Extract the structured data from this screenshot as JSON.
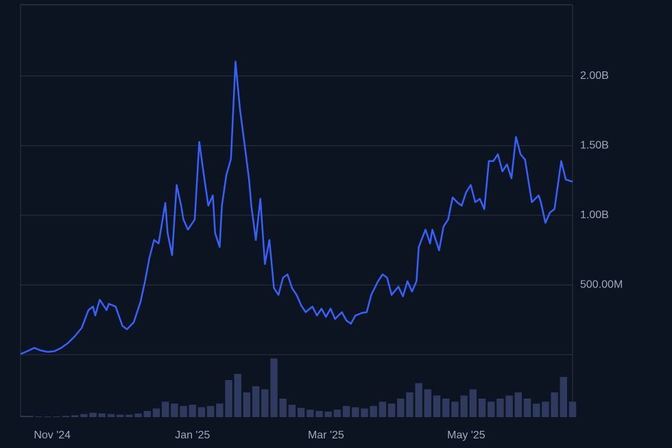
{
  "chart_data": {
    "type": "line",
    "series": [
      {
        "color": "#3861fb",
        "x": [
          0,
          3,
          6,
          9,
          12,
          15,
          18,
          21,
          24,
          27,
          30,
          32,
          33,
          35,
          38,
          39,
          42,
          45,
          47,
          50,
          53,
          55,
          57,
          59,
          61,
          64,
          65,
          67,
          69,
          71,
          72,
          74,
          77,
          79,
          81,
          83,
          85,
          86,
          88,
          89,
          91,
          93,
          95,
          97,
          99,
          101,
          102,
          104,
          106,
          108,
          110,
          112,
          114,
          116,
          118,
          120,
          122,
          124,
          126,
          129,
          131,
          133,
          135,
          137,
          139,
          142,
          144,
          146,
          148,
          151,
          153,
          155,
          158,
          160,
          162,
          164,
          167,
          169,
          171,
          173,
          175,
          176,
          179,
          181,
          182,
          185,
          187,
          189,
          191,
          193,
          195,
          197,
          199,
          201,
          203,
          205,
          207,
          209,
          211,
          213,
          215,
          217,
          219,
          221,
          223,
          226,
          229,
          230,
          232,
          234,
          236,
          239,
          241,
          244
        ],
        "values": [
          5000000,
          25000000,
          49000000,
          30000000,
          20000000,
          25000000,
          49000000,
          84000000,
          133000000,
          192000000,
          320000000,
          345000000,
          281000000,
          394000000,
          320000000,
          365000000,
          345000000,
          207000000,
          182000000,
          232000000,
          379000000,
          527000000,
          700000000,
          823000000,
          798000000,
          1089000000,
          872000000,
          714000000,
          1217000000,
          1069000000,
          970000000,
          897000000,
          970000000,
          1527000000,
          1291000000,
          1069000000,
          1143000000,
          872000000,
          773000000,
          1069000000,
          1291000000,
          1404000000,
          2103000000,
          1759000000,
          1512000000,
          1256000000,
          1069000000,
          823000000,
          1118000000,
          650000000,
          823000000,
          478000000,
          429000000,
          552000000,
          576000000,
          478000000,
          429000000,
          355000000,
          305000000,
          345000000,
          281000000,
          330000000,
          271000000,
          330000000,
          256000000,
          305000000,
          246000000,
          222000000,
          281000000,
          300000000,
          305000000,
          429000000,
          527000000,
          576000000,
          552000000,
          429000000,
          488000000,
          419000000,
          527000000,
          453000000,
          527000000,
          773000000,
          897000000,
          798000000,
          897000000,
          749000000,
          921000000,
          970000000,
          1128000000,
          1094000000,
          1069000000,
          1167000000,
          1217000000,
          1094000000,
          1118000000,
          1044000000,
          1389000000,
          1389000000,
          1438000000,
          1315000000,
          1365000000,
          1266000000,
          1562000000,
          1438000000,
          1399000000,
          1094000000,
          1143000000,
          1094000000,
          946000000,
          1020000000,
          1044000000,
          1389000000,
          1256000000,
          1241000000
        ]
      }
    ],
    "volume": {
      "color": "#2f3a5e",
      "x": [
        0,
        4,
        8,
        12,
        16,
        20,
        24,
        28,
        32,
        36,
        40,
        44,
        48,
        52,
        56,
        60,
        64,
        68,
        72,
        76,
        80,
        84,
        88,
        92,
        96,
        100,
        104,
        108,
        112,
        116,
        120,
        124,
        128,
        132,
        136,
        140,
        144,
        148,
        152,
        156,
        160,
        164,
        168,
        172,
        176,
        180,
        184,
        188,
        192,
        196,
        200,
        204,
        208,
        212,
        216,
        220,
        224,
        228,
        232,
        236,
        240,
        244
      ],
      "values": [
        2,
        2,
        1,
        1,
        1,
        2,
        3,
        5,
        7,
        6,
        5,
        4,
        4,
        6,
        10,
        14,
        25,
        22,
        18,
        20,
        16,
        18,
        22,
        60,
        70,
        40,
        50,
        45,
        95,
        30,
        20,
        15,
        12,
        10,
        9,
        12,
        18,
        16,
        14,
        18,
        25,
        22,
        30,
        40,
        55,
        45,
        35,
        30,
        25,
        35,
        45,
        30,
        25,
        30,
        35,
        40,
        30,
        22,
        25,
        40,
        65,
        25
      ],
      "ylim": [
        0,
        100
      ]
    },
    "xlim": [
      0,
      244
    ],
    "xticks": [
      {
        "value": 14,
        "label": "Nov '24"
      },
      {
        "value": 76,
        "label": "Jan '25"
      },
      {
        "value": 135,
        "label": "Mar '25"
      },
      {
        "value": 197,
        "label": "May '25"
      }
    ],
    "ylim": [
      0,
      2510000000
    ],
    "yticks": [
      {
        "value": 500000000,
        "label": "500.00M"
      },
      {
        "value": 1000000000,
        "label": "1.00B"
      },
      {
        "value": 1500000000,
        "label": "1.50B"
      },
      {
        "value": 2000000000,
        "label": "2.00B"
      }
    ],
    "grid": true
  }
}
